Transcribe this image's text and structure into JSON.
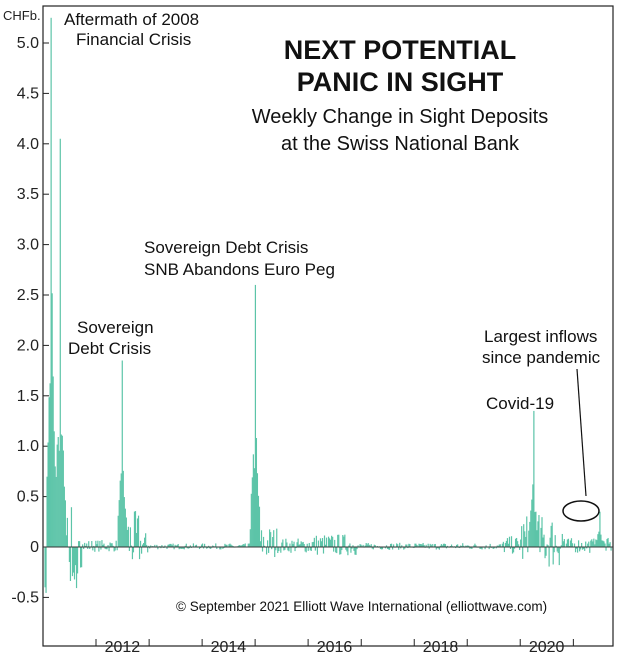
{
  "chart_data": {
    "type": "bar",
    "title_lines": [
      "NEXT POTENTIAL",
      "PANIC IN SIGHT"
    ],
    "subtitle_lines": [
      "Weekly Change in Sight Deposits",
      "at the Swiss National Bank"
    ],
    "unit": "CHFb.",
    "ylim": [
      -0.8,
      5.3
    ],
    "y_ticks": [
      "5.0",
      "4.5",
      "4.0",
      "3.5",
      "3.0",
      "2.5",
      "2.0",
      "1.5",
      "1.0",
      "0.5",
      "0",
      "-0.5"
    ],
    "x_ticks": [
      "2012",
      "2014",
      "2016",
      "2018",
      "2020"
    ],
    "xlim": [
      "2011-01",
      "2021-10"
    ],
    "grid": false,
    "bar_color": "#5cc4a8",
    "annotations": [
      {
        "lines": [
          "Aftermath of 2008",
          "Financial Crisis"
        ]
      },
      {
        "lines": [
          "Sovereign",
          "Debt Crisis"
        ]
      },
      {
        "lines": [
          "Sovereign Debt Crisis",
          "SNB Abandons Euro Peg"
        ]
      },
      {
        "lines": [
          "Covid-19"
        ]
      },
      {
        "lines": [
          "Largest inflows",
          "since pandemic"
        ]
      }
    ],
    "credit": "© September 2021 Elliott Wave International (elliottwave.com)",
    "peaks": [
      {
        "date": "2011-03",
        "value": 5.25
      },
      {
        "date": "2011-05",
        "value": 4.05
      },
      {
        "date": "2012-07",
        "value": 1.85
      },
      {
        "date": "2015-01",
        "value": 2.6
      },
      {
        "date": "2020-04",
        "value": 1.35
      },
      {
        "date": "2021-07",
        "value": 0.35
      }
    ]
  }
}
